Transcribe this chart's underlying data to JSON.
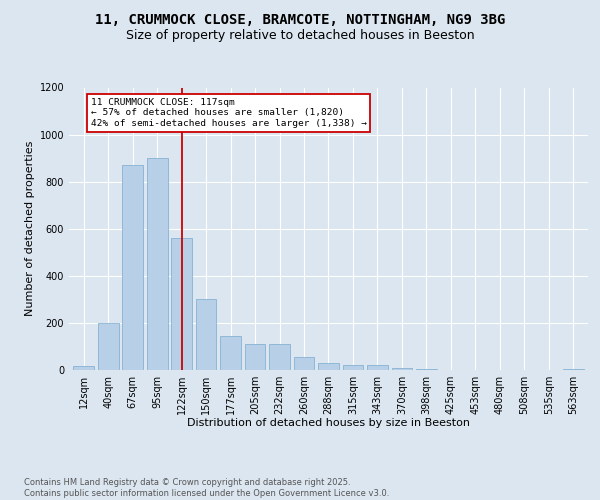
{
  "title": "11, CRUMMOCK CLOSE, BRAMCOTE, NOTTINGHAM, NG9 3BG",
  "subtitle": "Size of property relative to detached houses in Beeston",
  "xlabel": "Distribution of detached houses by size in Beeston",
  "ylabel": "Number of detached properties",
  "categories": [
    "12sqm",
    "40sqm",
    "67sqm",
    "95sqm",
    "122sqm",
    "150sqm",
    "177sqm",
    "205sqm",
    "232sqm",
    "260sqm",
    "288sqm",
    "315sqm",
    "343sqm",
    "370sqm",
    "398sqm",
    "425sqm",
    "453sqm",
    "480sqm",
    "508sqm",
    "535sqm",
    "563sqm"
  ],
  "values": [
    15,
    200,
    870,
    900,
    560,
    300,
    145,
    110,
    110,
    55,
    30,
    20,
    20,
    8,
    5,
    0,
    0,
    0,
    0,
    0,
    5
  ],
  "bar_color": "#b8cfe8",
  "bar_edge_color": "#7aaad0",
  "vline_x_index": 4,
  "vline_color": "#cc0000",
  "annotation_line1": "11 CRUMMOCK CLOSE: 117sqm",
  "annotation_line2": "← 57% of detached houses are smaller (1,820)",
  "annotation_line3": "42% of semi-detached houses are larger (1,338) →",
  "annotation_box_facecolor": "#ffffff",
  "annotation_box_edgecolor": "#cc0000",
  "ylim": [
    0,
    1200
  ],
  "yticks": [
    0,
    200,
    400,
    600,
    800,
    1000,
    1200
  ],
  "background_color": "#dce6f0",
  "plot_bg_color": "#dce6f0",
  "footer_text": "Contains HM Land Registry data © Crown copyright and database right 2025.\nContains public sector information licensed under the Open Government Licence v3.0.",
  "title_fontsize": 10,
  "subtitle_fontsize": 9,
  "xlabel_fontsize": 8,
  "ylabel_fontsize": 8,
  "tick_fontsize": 7,
  "footer_fontsize": 6
}
